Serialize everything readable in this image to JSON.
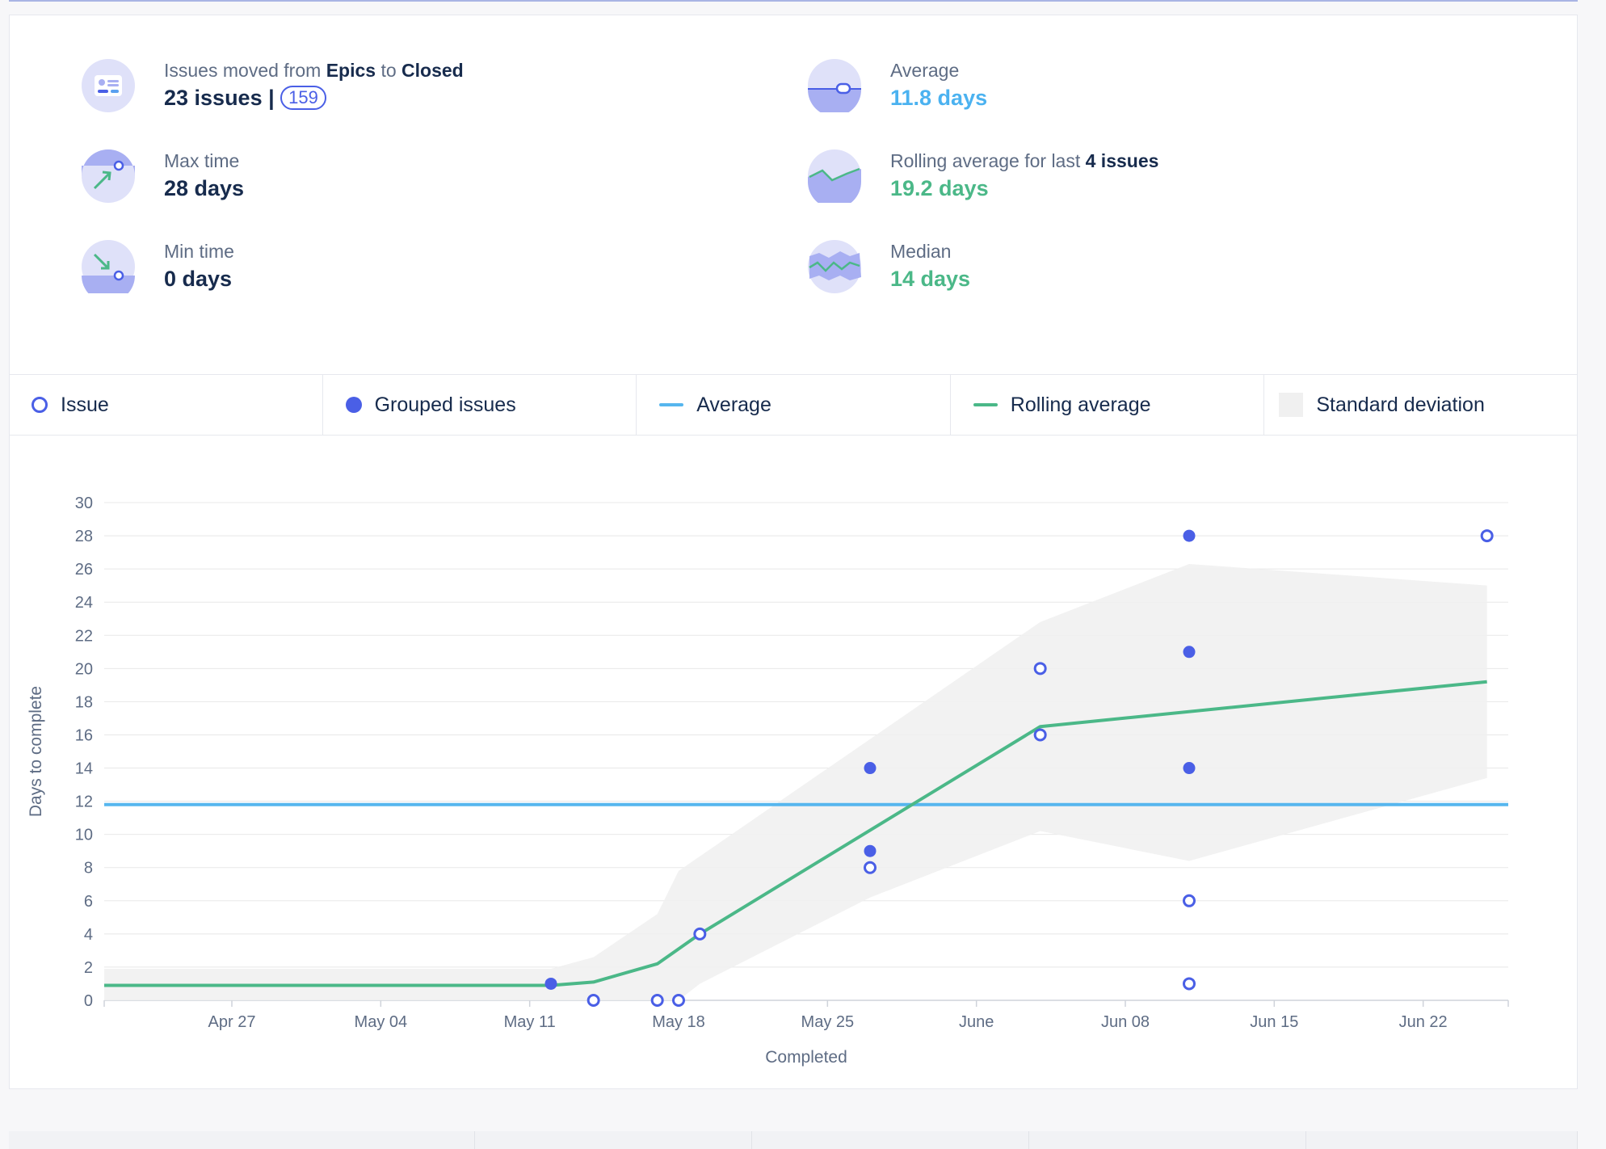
{
  "stats": {
    "moved": {
      "prefix": "Issues moved from ",
      "from": "Epics",
      "mid": " to ",
      "to": "Closed",
      "value": "23 issues | ",
      "pill": "159"
    },
    "max": {
      "label": "Max time",
      "value": "28 days"
    },
    "min": {
      "label": "Min time",
      "value": "0 days"
    },
    "average": {
      "label": "Average",
      "value": "11.8 days"
    },
    "rolling": {
      "label_prefix": "Rolling average for last ",
      "label_bold": "4 issues",
      "value": "19.2 days"
    },
    "median": {
      "label": "Median",
      "value": "14 days"
    }
  },
  "legend": {
    "issue": "Issue",
    "grouped": "Grouped issues",
    "average": "Average",
    "rolling": "Rolling average",
    "stddev": "Standard deviation"
  },
  "colors": {
    "issue": "#4a5fe6",
    "average": "#56b6ee",
    "rolling": "#4bb888",
    "stddev": "#f0f0f0",
    "grid": "#e8e8e8"
  },
  "chart_data": {
    "type": "scatter",
    "xlabel": "Completed",
    "ylabel": "Days to complete",
    "ylim": [
      0,
      30
    ],
    "xlim": [
      "2025-04-21",
      "2025-06-26"
    ],
    "yticks": [
      0,
      2,
      4,
      6,
      8,
      10,
      12,
      14,
      16,
      18,
      20,
      22,
      24,
      26,
      28,
      30
    ],
    "xticks": [
      {
        "date": "2025-04-27",
        "label": "Apr 27"
      },
      {
        "date": "2025-05-04",
        "label": "May 04"
      },
      {
        "date": "2025-05-11",
        "label": "May 11"
      },
      {
        "date": "2025-05-18",
        "label": "May 18"
      },
      {
        "date": "2025-05-25",
        "label": "May 25"
      },
      {
        "date": "2025-06-01",
        "label": "June"
      },
      {
        "date": "2025-06-08",
        "label": "Jun 08"
      },
      {
        "date": "2025-06-15",
        "label": "Jun 15"
      },
      {
        "date": "2025-06-22",
        "label": "Jun 22"
      }
    ],
    "issues": [
      {
        "x": "2025-05-14",
        "y": 0
      },
      {
        "x": "2025-05-17",
        "y": 0
      },
      {
        "x": "2025-05-18",
        "y": 0
      },
      {
        "x": "2025-05-19",
        "y": 4
      },
      {
        "x": "2025-05-27",
        "y": 8
      },
      {
        "x": "2025-06-04",
        "y": 20
      },
      {
        "x": "2025-06-04",
        "y": 16
      },
      {
        "x": "2025-06-11",
        "y": 6
      },
      {
        "x": "2025-06-11",
        "y": 1
      },
      {
        "x": "2025-06-25",
        "y": 28
      }
    ],
    "grouped": [
      {
        "x": "2025-05-12",
        "y": 1
      },
      {
        "x": "2025-05-27",
        "y": 14
      },
      {
        "x": "2025-05-27",
        "y": 9
      },
      {
        "x": "2025-06-11",
        "y": 28
      },
      {
        "x": "2025-06-11",
        "y": 21
      },
      {
        "x": "2025-06-11",
        "y": 14
      }
    ],
    "average": 11.8,
    "rolling": [
      {
        "x": "2025-04-21",
        "y": 0.9
      },
      {
        "x": "2025-05-12",
        "y": 0.9
      },
      {
        "x": "2025-05-14",
        "y": 1.1
      },
      {
        "x": "2025-05-17",
        "y": 2.2
      },
      {
        "x": "2025-05-19",
        "y": 4
      },
      {
        "x": "2025-06-04",
        "y": 16.5
      },
      {
        "x": "2025-06-25",
        "y": 19.2
      }
    ],
    "stddev_upper": [
      {
        "x": "2025-04-21",
        "y": 1.9
      },
      {
        "x": "2025-05-12",
        "y": 1.9
      },
      {
        "x": "2025-05-14",
        "y": 2.6
      },
      {
        "x": "2025-05-17",
        "y": 5.2
      },
      {
        "x": "2025-05-18",
        "y": 7.8
      },
      {
        "x": "2025-06-04",
        "y": 22.8
      },
      {
        "x": "2025-06-11",
        "y": 26.3
      },
      {
        "x": "2025-06-25",
        "y": 25
      }
    ],
    "stddev_lower": [
      {
        "x": "2025-04-21",
        "y": 0
      },
      {
        "x": "2025-05-18",
        "y": 0
      },
      {
        "x": "2025-05-19",
        "y": 1
      },
      {
        "x": "2025-05-27",
        "y": 6.2
      },
      {
        "x": "2025-06-04",
        "y": 10.2
      },
      {
        "x": "2025-06-11",
        "y": 8.4
      },
      {
        "x": "2025-06-25",
        "y": 13.4
      }
    ]
  }
}
